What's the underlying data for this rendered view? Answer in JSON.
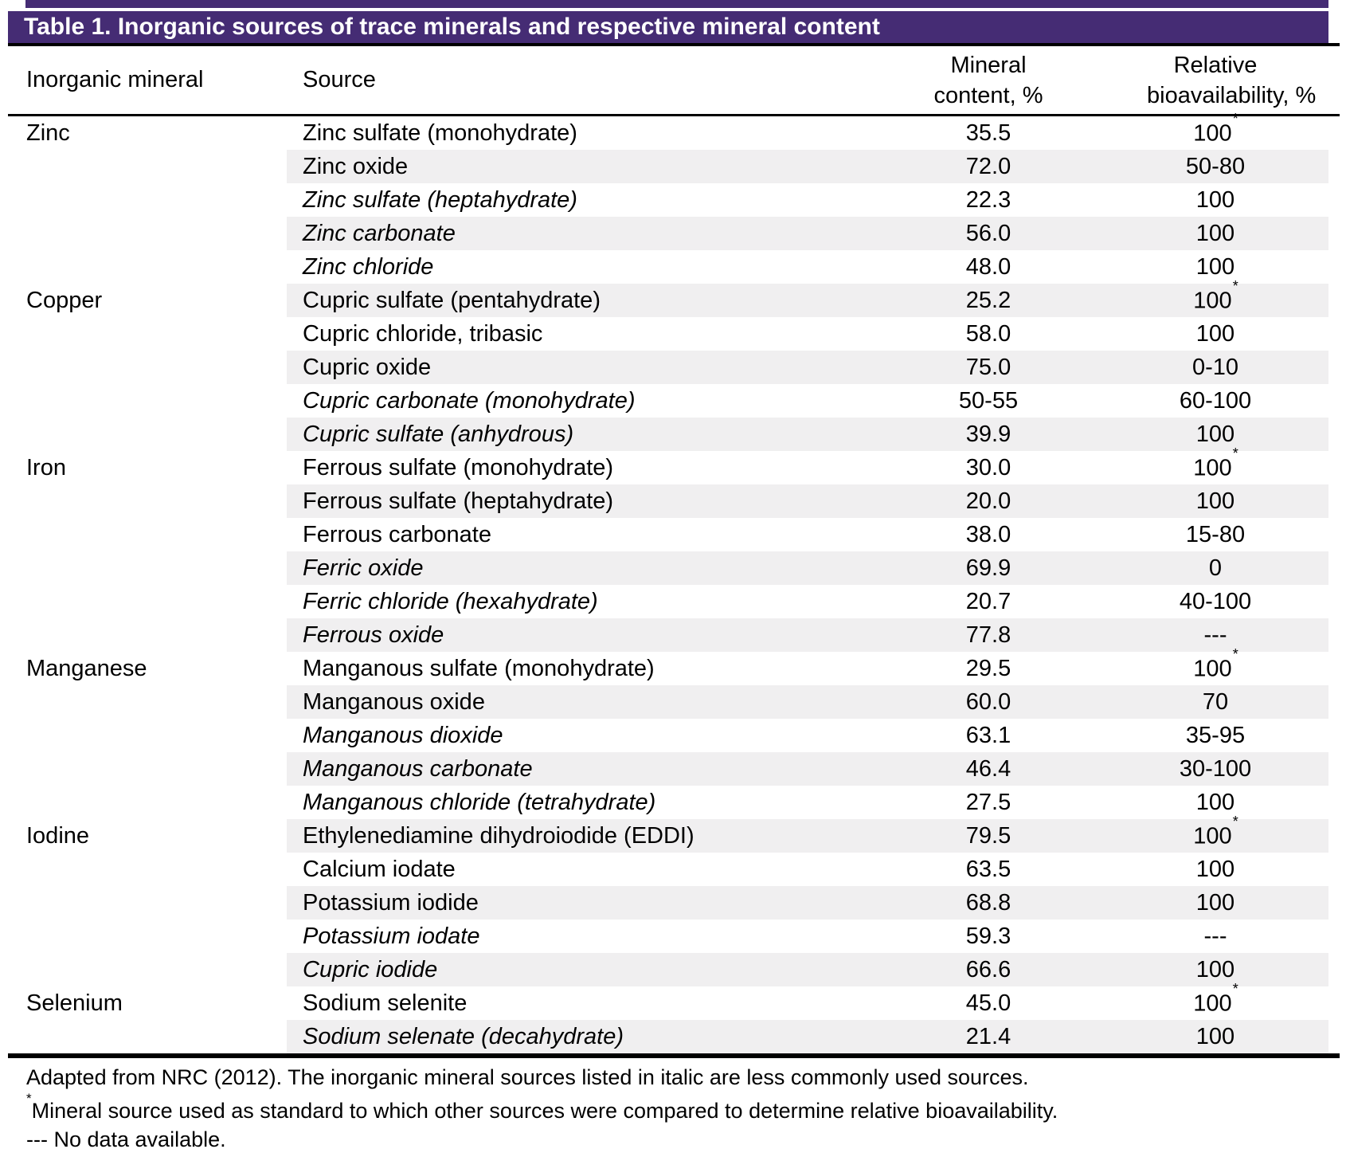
{
  "table": {
    "title": "Table 1. Inorganic sources of trace minerals and respective mineral content",
    "header": {
      "col1": "Inorganic mineral",
      "col2": "Source",
      "col3_line1": "Mineral",
      "col3_line2": "content, %",
      "col4_line1": "Relative",
      "col4_line2": "bioavailability, %"
    },
    "standard_marker": "*",
    "no_data_marker": "---",
    "rows": [
      {
        "mineral": "Zinc",
        "source": "Zinc sulfate (monohydrate)",
        "italic": false,
        "content": "35.5",
        "bioavailability": "100",
        "standard": true
      },
      {
        "mineral": "",
        "source": "Zinc oxide",
        "italic": false,
        "content": "72.0",
        "bioavailability": "50-80",
        "standard": false
      },
      {
        "mineral": "",
        "source": "Zinc sulfate (heptahydrate)",
        "italic": true,
        "content": "22.3",
        "bioavailability": "100",
        "standard": false
      },
      {
        "mineral": "",
        "source": "Zinc carbonate",
        "italic": true,
        "content": "56.0",
        "bioavailability": "100",
        "standard": false
      },
      {
        "mineral": "",
        "source": "Zinc chloride",
        "italic": true,
        "content": "48.0",
        "bioavailability": "100",
        "standard": false
      },
      {
        "mineral": "Copper",
        "source": "Cupric sulfate (pentahydrate)",
        "italic": false,
        "content": "25.2",
        "bioavailability": "100",
        "standard": true
      },
      {
        "mineral": "",
        "source": "Cupric chloride, tribasic",
        "italic": false,
        "content": "58.0",
        "bioavailability": "100",
        "standard": false
      },
      {
        "mineral": "",
        "source": "Cupric oxide",
        "italic": false,
        "content": "75.0",
        "bioavailability": "0-10",
        "standard": false
      },
      {
        "mineral": "",
        "source": "Cupric carbonate (monohydrate)",
        "italic": true,
        "content": "50-55",
        "bioavailability": "60-100",
        "standard": false
      },
      {
        "mineral": "",
        "source": "Cupric sulfate (anhydrous)",
        "italic": true,
        "content": "39.9",
        "bioavailability": "100",
        "standard": false
      },
      {
        "mineral": "Iron",
        "source": "Ferrous sulfate (monohydrate)",
        "italic": false,
        "content": "30.0",
        "bioavailability": "100",
        "standard": true
      },
      {
        "mineral": "",
        "source": "Ferrous sulfate (heptahydrate)",
        "italic": false,
        "content": "20.0",
        "bioavailability": "100",
        "standard": false
      },
      {
        "mineral": "",
        "source": "Ferrous carbonate",
        "italic": false,
        "content": "38.0",
        "bioavailability": "15-80",
        "standard": false
      },
      {
        "mineral": "",
        "source": "Ferric oxide",
        "italic": true,
        "content": "69.9",
        "bioavailability": "0",
        "standard": false
      },
      {
        "mineral": "",
        "source": "Ferric chloride (hexahydrate)",
        "italic": true,
        "content": "20.7",
        "bioavailability": "40-100",
        "standard": false
      },
      {
        "mineral": "",
        "source": "Ferrous oxide",
        "italic": true,
        "content": "77.8",
        "bioavailability": "---",
        "standard": false
      },
      {
        "mineral": "Manganese",
        "source": "Manganous sulfate (monohydrate)",
        "italic": false,
        "content": "29.5",
        "bioavailability": "100",
        "standard": true
      },
      {
        "mineral": "",
        "source": "Manganous oxide",
        "italic": false,
        "content": "60.0",
        "bioavailability": "70",
        "standard": false
      },
      {
        "mineral": "",
        "source": "Manganous dioxide",
        "italic": true,
        "content": "63.1",
        "bioavailability": "35-95",
        "standard": false
      },
      {
        "mineral": "",
        "source": "Manganous carbonate",
        "italic": true,
        "content": "46.4",
        "bioavailability": "30-100",
        "standard": false
      },
      {
        "mineral": "",
        "source": "Manganous chloride (tetrahydrate)",
        "italic": true,
        "content": "27.5",
        "bioavailability": "100",
        "standard": false
      },
      {
        "mineral": "Iodine",
        "source": "Ethylenediamine dihydroiodide (EDDI)",
        "italic": false,
        "content": "79.5",
        "bioavailability": "100",
        "standard": true
      },
      {
        "mineral": "",
        "source": "Calcium iodate",
        "italic": false,
        "content": "63.5",
        "bioavailability": "100",
        "standard": false
      },
      {
        "mineral": "",
        "source": "Potassium iodide",
        "italic": false,
        "content": "68.8",
        "bioavailability": "100",
        "standard": false
      },
      {
        "mineral": "",
        "source": "Potassium iodate",
        "italic": true,
        "content": "59.3",
        "bioavailability": "---",
        "standard": false
      },
      {
        "mineral": "",
        "source": "Cupric iodide",
        "italic": true,
        "content": "66.6",
        "bioavailability": "100",
        "standard": false
      },
      {
        "mineral": "Selenium",
        "source": "Sodium selenite",
        "italic": false,
        "content": "45.0",
        "bioavailability": "100",
        "standard": true
      },
      {
        "mineral": "",
        "source": "Sodium selenate (decahydrate)",
        "italic": true,
        "content": "21.4",
        "bioavailability": "100",
        "standard": false
      }
    ]
  },
  "footnotes": {
    "source_note": "Adapted from NRC (2012). The inorganic mineral sources listed in italic are less commonly used sources.",
    "standard_marker": "*",
    "standard_note": "Mineral source used as standard to which other sources were compared to determine relative bioavailability.",
    "no_data_note": "--- No data available."
  },
  "colors": {
    "header_bar": "#452c74",
    "header_bar_text": "#ffffff",
    "row_shade": "#f0eff0",
    "rule": "#000000",
    "body_text": "#000000"
  }
}
